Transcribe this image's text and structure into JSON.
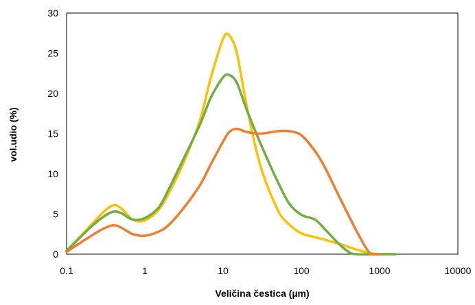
{
  "chart_data": {
    "type": "line",
    "title": "",
    "xlabel": "Veličina čestica (µm)",
    "ylabel": "vol.udio (%)",
    "x_scale": "log",
    "xlim": [
      0.1,
      10000
    ],
    "ylim": [
      0,
      30
    ],
    "x_ticks": [
      "0.1",
      "1",
      "10",
      "100",
      "1000",
      "10000"
    ],
    "y_ticks": [
      "0",
      "5",
      "10",
      "15",
      "20",
      "25",
      "30"
    ],
    "grid": false,
    "legend": "none",
    "series": [
      {
        "color": "#FFC000",
        "points": [
          [
            0.1,
            0.4
          ],
          [
            0.2,
            3.5
          ],
          [
            0.3,
            5.3
          ],
          [
            0.4,
            6.1
          ],
          [
            0.5,
            5.7
          ],
          [
            0.7,
            4.3
          ],
          [
            1.0,
            4.2
          ],
          [
            1.5,
            5.5
          ],
          [
            2.0,
            7.5
          ],
          [
            3.0,
            11.0
          ],
          [
            5.0,
            16.5
          ],
          [
            7.0,
            22.0
          ],
          [
            10.0,
            26.8
          ],
          [
            12.0,
            27.2
          ],
          [
            15.0,
            25.0
          ],
          [
            20.0,
            18.5
          ],
          [
            30.0,
            11.0
          ],
          [
            50.0,
            5.5
          ],
          [
            70.0,
            3.7
          ],
          [
            100.0,
            2.6
          ],
          [
            150.0,
            2.1
          ],
          [
            200.0,
            1.8
          ],
          [
            300.0,
            1.3
          ],
          [
            500.0,
            0.6
          ],
          [
            700.0,
            0.2
          ],
          [
            1000.0,
            0.0
          ],
          [
            1600.0,
            0.0
          ]
        ]
      },
      {
        "color": "#70AD47",
        "points": [
          [
            0.1,
            0.4
          ],
          [
            0.2,
            3.3
          ],
          [
            0.3,
            4.7
          ],
          [
            0.4,
            5.3
          ],
          [
            0.5,
            5.1
          ],
          [
            0.7,
            4.3
          ],
          [
            1.0,
            4.5
          ],
          [
            1.5,
            5.8
          ],
          [
            2.0,
            8.0
          ],
          [
            3.0,
            11.5
          ],
          [
            5.0,
            16.0
          ],
          [
            7.0,
            19.5
          ],
          [
            10.0,
            22.0
          ],
          [
            12.0,
            22.3
          ],
          [
            15.0,
            21.3
          ],
          [
            20.0,
            18.0
          ],
          [
            30.0,
            13.8
          ],
          [
            50.0,
            9.0
          ],
          [
            70.0,
            6.3
          ],
          [
            100.0,
            4.9
          ],
          [
            150.0,
            4.3
          ],
          [
            200.0,
            3.1
          ],
          [
            300.0,
            1.3
          ],
          [
            400.0,
            0.3
          ],
          [
            500.0,
            0.0
          ],
          [
            1000.0,
            0.0
          ],
          [
            1600.0,
            0.0
          ]
        ]
      },
      {
        "color": "#ED7D31",
        "points": [
          [
            0.1,
            0.3
          ],
          [
            0.2,
            2.2
          ],
          [
            0.3,
            3.2
          ],
          [
            0.4,
            3.6
          ],
          [
            0.5,
            3.3
          ],
          [
            0.7,
            2.5
          ],
          [
            1.0,
            2.3
          ],
          [
            1.5,
            2.8
          ],
          [
            2.0,
            3.6
          ],
          [
            3.0,
            5.5
          ],
          [
            5.0,
            8.5
          ],
          [
            7.0,
            11.2
          ],
          [
            10.0,
            14.0
          ],
          [
            12.0,
            15.2
          ],
          [
            15.0,
            15.6
          ],
          [
            20.0,
            15.2
          ],
          [
            30.0,
            15.0
          ],
          [
            50.0,
            15.3
          ],
          [
            70.0,
            15.3
          ],
          [
            100.0,
            14.8
          ],
          [
            150.0,
            12.8
          ],
          [
            200.0,
            10.8
          ],
          [
            300.0,
            7.3
          ],
          [
            500.0,
            3.0
          ],
          [
            700.0,
            0.5
          ],
          [
            800.0,
            0.0
          ],
          [
            1000.0,
            0.0
          ]
        ]
      }
    ]
  }
}
